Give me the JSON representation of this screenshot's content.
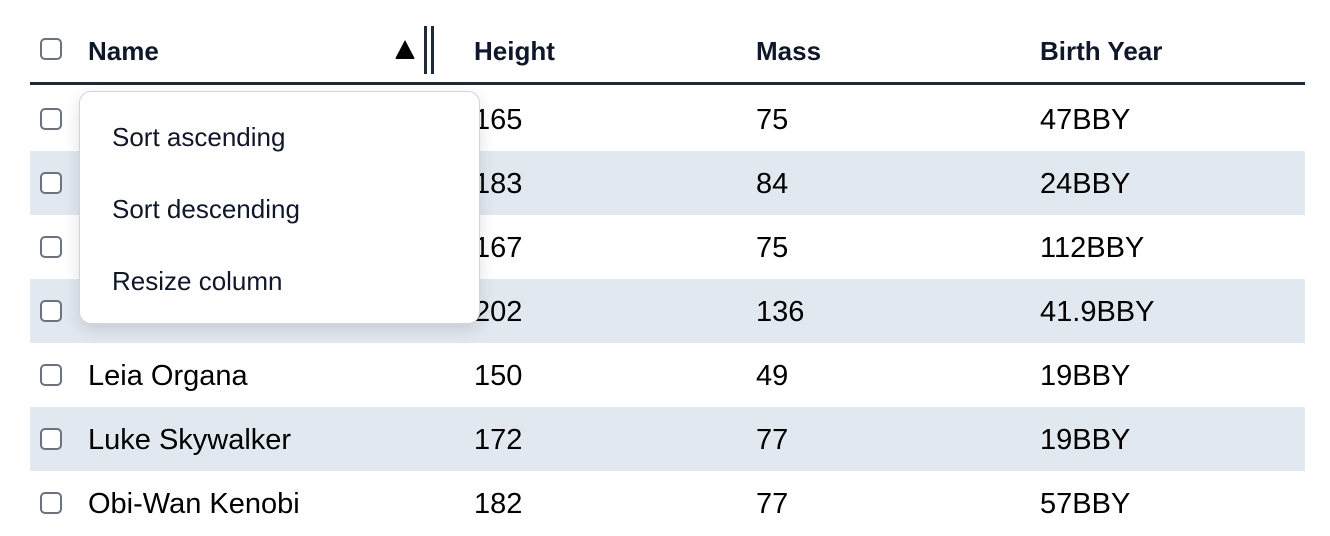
{
  "columns": {
    "name": "Name",
    "height": "Height",
    "mass": "Mass",
    "birth_year": "Birth Year"
  },
  "sort": {
    "column": "Name",
    "direction": "ascending",
    "icon": "triangle-up-icon"
  },
  "rows": [
    {
      "name": "",
      "height": "165",
      "mass": "75",
      "birth_year": "47BBY"
    },
    {
      "name": "",
      "height": "183",
      "mass": "84",
      "birth_year": "24BBY"
    },
    {
      "name": "",
      "height": "167",
      "mass": "75",
      "birth_year": "112BBY"
    },
    {
      "name": "",
      "height": "202",
      "mass": "136",
      "birth_year": "41.9BBY"
    },
    {
      "name": "Leia Organa",
      "height": "150",
      "mass": "49",
      "birth_year": "19BBY"
    },
    {
      "name": "Luke Skywalker",
      "height": "172",
      "mass": "77",
      "birth_year": "19BBY"
    },
    {
      "name": "Obi-Wan Kenobi",
      "height": "182",
      "mass": "77",
      "birth_year": "57BBY"
    }
  ],
  "menu": {
    "items": [
      "Sort ascending",
      "Sort descending",
      "Resize column"
    ]
  },
  "colors": {
    "header_border": "#1e293b",
    "stripe": "#e2e8f0"
  }
}
